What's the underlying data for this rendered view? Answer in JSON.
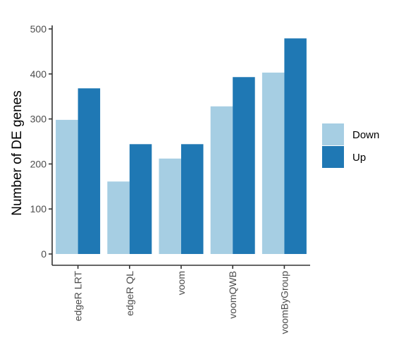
{
  "chart_data": {
    "type": "bar",
    "title": "",
    "xlabel": "",
    "ylabel": "Number of DE genes",
    "categories": [
      "edgeR LRT",
      "edgeR QL",
      "voom",
      "voomQWB",
      "voomByGroup"
    ],
    "series": [
      {
        "name": "Down",
        "color": "#a6cee3",
        "values": [
          298,
          161,
          212,
          328,
          403
        ]
      },
      {
        "name": "Up",
        "color": "#1f78b4",
        "values": [
          368,
          244,
          244,
          393,
          479
        ]
      }
    ],
    "ylim": [
      0,
      500
    ],
    "yticks": [
      0,
      100,
      200,
      300,
      400,
      500
    ],
    "grid": false,
    "legend_position": "right",
    "x_tick_rotation": "vertical"
  }
}
